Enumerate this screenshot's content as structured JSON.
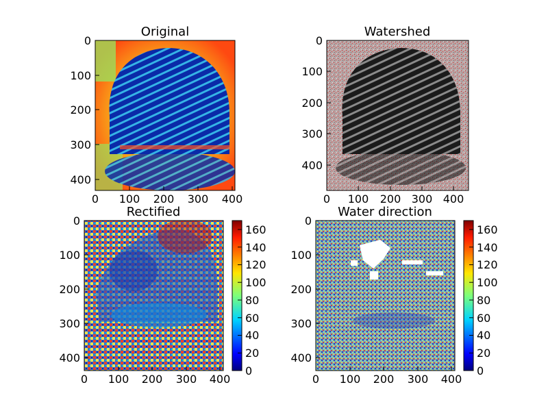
{
  "chart_data": [
    {
      "type": "heatmap",
      "title": "Original",
      "image": "fingerprint-jet-colormap",
      "colormap": "jet",
      "xlim": [
        0,
        410
      ],
      "ylim": [
        430,
        0
      ],
      "xticks": [
        0,
        100,
        200,
        300,
        400
      ],
      "yticks": [
        0,
        100,
        200,
        300,
        400
      ],
      "colorbar": false
    },
    {
      "type": "heatmap",
      "title": "Watershed",
      "image": "fingerprint-gray-red-overlay",
      "colormap": "gray",
      "xlim": [
        0,
        440
      ],
      "ylim": [
        480,
        0
      ],
      "xticks": [
        0,
        100,
        200,
        300,
        400
      ],
      "yticks": [
        0,
        100,
        200,
        300,
        400
      ],
      "colorbar": false
    },
    {
      "type": "heatmap",
      "title": "Rectified",
      "image": "orientation-field-jet",
      "colormap": "jet",
      "xlim": [
        0,
        410
      ],
      "ylim": [
        440,
        0
      ],
      "xticks": [
        0,
        100,
        200,
        300,
        400
      ],
      "yticks": [
        0,
        100,
        200,
        300,
        400
      ],
      "colorbar": true,
      "colorbar_range": [
        0,
        170
      ],
      "colorbar_ticks": [
        0,
        20,
        40,
        60,
        80,
        100,
        120,
        140,
        160
      ]
    },
    {
      "type": "heatmap",
      "title": "Water direction",
      "image": "orientation-field-jet-with-holes",
      "colormap": "jet",
      "xlim": [
        0,
        410
      ],
      "ylim": [
        440,
        0
      ],
      "xticks": [
        0,
        100,
        200,
        300,
        400
      ],
      "yticks": [
        0,
        100,
        200,
        300,
        400
      ],
      "colorbar": true,
      "colorbar_range": [
        0,
        170
      ],
      "colorbar_ticks": [
        0,
        20,
        40,
        60,
        80,
        100,
        120,
        140,
        160
      ]
    }
  ]
}
